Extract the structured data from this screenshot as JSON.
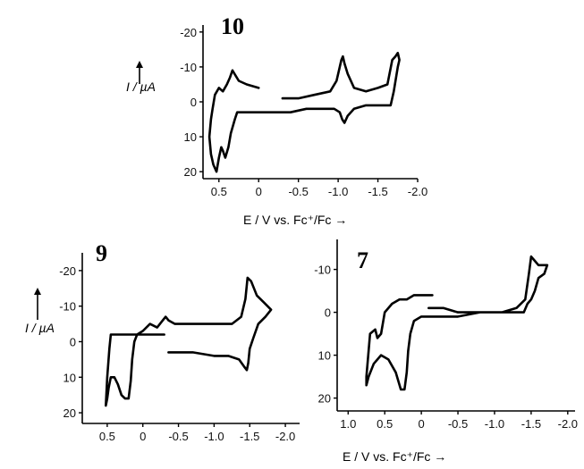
{
  "figure": {
    "x_axis_label": "E / V vs. Fc⁺/Fc →",
    "y_axis_label": "I / µA"
  },
  "chart_data": [
    {
      "type": "line",
      "panel_label": "10",
      "xlabel": "E / V vs. Fc⁺/Fc",
      "ylabel": "I / µA",
      "xlim": [
        0.7,
        -2.0
      ],
      "ylim": [
        22,
        -22
      ],
      "x_ticks": [
        0.5,
        0,
        -0.5,
        -1.0,
        -1.5,
        -2.0
      ],
      "x_tick_labels": [
        "0.5",
        "0",
        "-0.5",
        "-1.0",
        "-1.5",
        "-2.0"
      ],
      "y_ticks": [
        -20,
        -10,
        0,
        10,
        20
      ],
      "y_tick_labels": [
        "-20",
        "-10",
        "0",
        "10",
        "20"
      ],
      "series": [
        {
          "x": [
            0.0,
            0.15,
            0.25,
            0.33,
            0.36,
            0.4,
            0.45,
            0.5,
            0.55,
            0.58,
            0.6,
            0.62,
            0.6,
            0.57,
            0.53,
            0.5,
            0.47,
            0.45,
            0.42,
            0.38,
            0.35,
            0.3,
            0.27,
            0.22,
            0.15,
            0.05,
            0.0,
            -0.2,
            -0.4,
            -0.6,
            -0.8,
            -0.95,
            -1.02,
            -1.05,
            -1.08,
            -1.12,
            -1.2,
            -1.35,
            -1.5,
            -1.62,
            -1.66,
            -1.7,
            -1.75,
            -1.77,
            -1.75,
            -1.72,
            -1.68,
            -1.62,
            -1.5,
            -1.35,
            -1.2,
            -1.12,
            -1.08,
            -1.06,
            -1.04,
            -1.02,
            -0.98,
            -0.9,
            -0.7,
            -0.5,
            -0.3
          ],
          "y": [
            -4,
            -5,
            -6,
            -9,
            -7,
            -5,
            -3,
            -4,
            -2,
            2,
            5,
            10,
            15,
            18,
            20,
            16,
            13,
            14,
            16,
            13,
            9,
            5,
            3,
            3,
            3,
            3,
            3,
            3,
            3,
            2,
            2,
            2,
            3,
            5,
            6,
            4,
            2,
            1,
            1,
            1,
            1,
            -3,
            -10,
            -12,
            -14,
            -13,
            -12,
            -5,
            -4,
            -3,
            -4,
            -8,
            -11,
            -13,
            -12,
            -10,
            -6,
            -3,
            -2,
            -1,
            -1
          ]
        }
      ]
    },
    {
      "type": "line",
      "panel_label": "9",
      "xlabel": "E / V vs. Fc⁺/Fc",
      "ylabel": "I / µA",
      "xlim": [
        0.85,
        -2.2
      ],
      "ylim": [
        23,
        -25
      ],
      "x_ticks": [
        0.5,
        0,
        -0.5,
        -1.0,
        -1.5,
        -2.0
      ],
      "x_tick_labels": [
        "0.5",
        "0",
        "-0.5",
        "-1.0",
        "-1.5",
        "-2.0"
      ],
      "y_ticks": [
        -20,
        -10,
        0,
        10,
        20
      ],
      "y_tick_labels": [
        "-20",
        "-10",
        "0",
        "10",
        "20"
      ],
      "series": [
        {
          "x": [
            -0.3,
            -0.1,
            0.0,
            0.1,
            0.2,
            0.25,
            0.3,
            0.35,
            0.4,
            0.45,
            0.47,
            0.5,
            0.52,
            0.5,
            0.48,
            0.45,
            0.4,
            0.35,
            0.3,
            0.25,
            0.2,
            0.17,
            0.15,
            0.12,
            0.08,
            0.0,
            -0.1,
            -0.2,
            -0.28,
            -0.32,
            -0.36,
            -0.45,
            -0.7,
            -1.0,
            -1.25,
            -1.38,
            -1.44,
            -1.47,
            -1.52,
            -1.6,
            -1.7,
            -1.8,
            -1.72,
            -1.62,
            -1.55,
            -1.5,
            -1.48,
            -1.46,
            -1.42,
            -1.35,
            -1.2,
            -1.0,
            -0.7,
            -0.5,
            -0.36
          ],
          "y": [
            -2,
            -2,
            -2,
            -2,
            -2,
            -2,
            -2,
            -2,
            -2,
            -2,
            2,
            10,
            18,
            16,
            13,
            10,
            10,
            12,
            15,
            16,
            16,
            11,
            5,
            0,
            -2,
            -3,
            -5,
            -4,
            -6,
            -7,
            -6,
            -5,
            -5,
            -5,
            -5,
            -7,
            -12,
            -18,
            -17,
            -13,
            -11,
            -9,
            -7,
            -5,
            -1,
            2,
            6,
            8,
            7,
            5,
            4,
            4,
            3,
            3,
            3
          ]
        }
      ]
    },
    {
      "type": "line",
      "panel_label": "7",
      "xlabel": "E / V vs. Fc⁺/Fc",
      "ylabel": "I / µA",
      "xlim": [
        1.15,
        -2.1
      ],
      "ylim": [
        23,
        -17
      ],
      "x_ticks": [
        1.0,
        0.5,
        0,
        -0.5,
        -1.0,
        -1.5,
        -2.0
      ],
      "x_tick_labels": [
        "1.0",
        "0.5",
        "0",
        "-0.5",
        "-1.0",
        "-1.5",
        "-2.0"
      ],
      "y_ticks": [
        -10,
        0,
        10,
        20
      ],
      "y_tick_labels": [
        "-10",
        "0",
        "10",
        "20"
      ],
      "series": [
        {
          "x": [
            -0.15,
            0.0,
            0.1,
            0.2,
            0.3,
            0.4,
            0.5,
            0.55,
            0.6,
            0.63,
            0.7,
            0.75,
            0.75,
            0.72,
            0.65,
            0.55,
            0.45,
            0.35,
            0.28,
            0.23,
            0.2,
            0.18,
            0.15,
            0.1,
            0.0,
            -0.2,
            -0.5,
            -0.8,
            -1.1,
            -1.3,
            -1.42,
            -1.47,
            -1.5,
            -1.55,
            -1.6,
            -1.68,
            -1.72,
            -1.68,
            -1.6,
            -1.55,
            -1.5,
            -1.45,
            -1.4,
            -1.3,
            -1.1,
            -0.8,
            -0.5,
            -0.3,
            -0.1
          ],
          "y": [
            -4,
            -4,
            -4,
            -3,
            -3,
            -2,
            0,
            5,
            6,
            4,
            5,
            15,
            17,
            15,
            12,
            10,
            11,
            14,
            18,
            18,
            14,
            9,
            5,
            2,
            1,
            1,
            1,
            0,
            0,
            -1,
            -3,
            -9,
            -13,
            -12,
            -11,
            -11,
            -11,
            -9,
            -8,
            -5,
            -3,
            -2,
            0,
            0,
            0,
            0,
            0,
            -1,
            -1
          ]
        }
      ]
    }
  ]
}
